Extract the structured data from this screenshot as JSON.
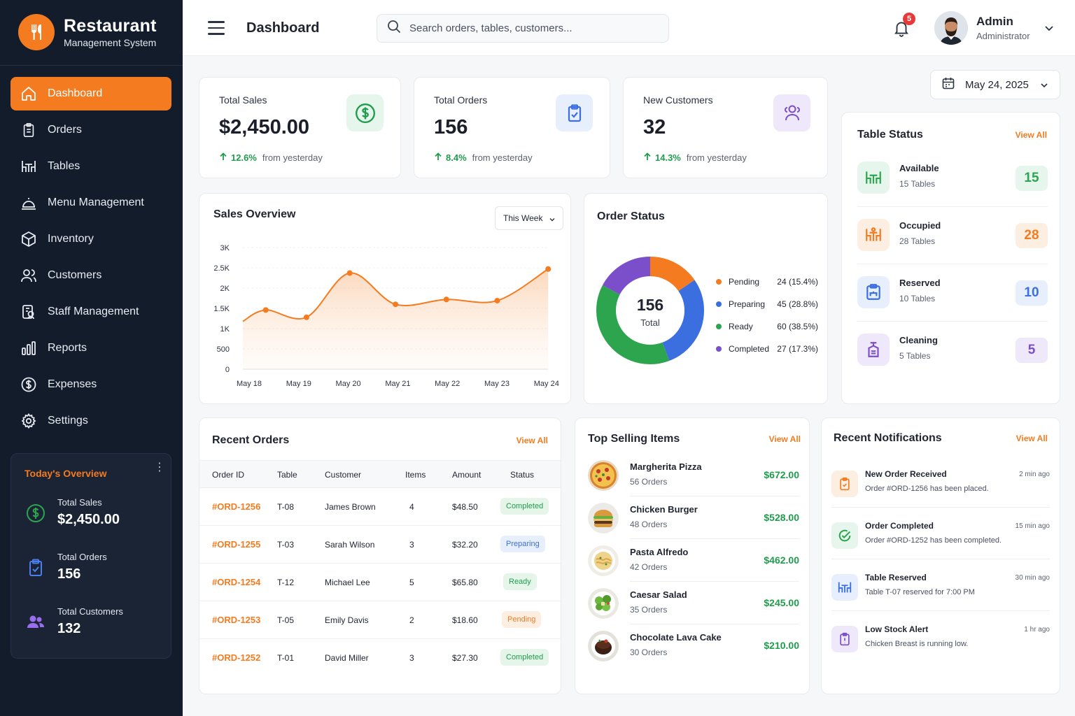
{
  "brand": {
    "title": "Restaurant",
    "subtitle": "Management System"
  },
  "header": {
    "page_title": "Dashboard",
    "search_placeholder": "Search orders, tables, customers...",
    "notification_count": "5",
    "user_name": "Admin",
    "user_role": "Administrator"
  },
  "sidebar": {
    "items": [
      {
        "label": "Dashboard",
        "icon": "home-icon",
        "active": true
      },
      {
        "label": "Orders",
        "icon": "clipboard-icon"
      },
      {
        "label": "Tables",
        "icon": "table-icon"
      },
      {
        "label": "Menu Management",
        "icon": "cloche-icon"
      },
      {
        "label": "Inventory",
        "icon": "box-icon"
      },
      {
        "label": "Customers",
        "icon": "users-icon"
      },
      {
        "label": "Staff Management",
        "icon": "staff-icon"
      },
      {
        "label": "Reports",
        "icon": "bar-chart-icon"
      },
      {
        "label": "Expenses",
        "icon": "dollar-icon"
      },
      {
        "label": "Settings",
        "icon": "gear-icon"
      }
    ],
    "overview": {
      "title": "Today's Overview",
      "items": [
        {
          "label": "Total Sales",
          "value": "$2,450.00"
        },
        {
          "label": "Total Orders",
          "value": "156"
        },
        {
          "label": "Total Customers",
          "value": "132"
        }
      ]
    }
  },
  "stats": [
    {
      "label": "Total Sales",
      "value": "$2,450.00",
      "change": "12.6%",
      "change_text": "from yesterday"
    },
    {
      "label": "Total Orders",
      "value": "156",
      "change": "8.4%",
      "change_text": "from yesterday"
    },
    {
      "label": "New Customers",
      "value": "32",
      "change": "14.3%",
      "change_text": "from yesterday"
    }
  ],
  "date_picker": {
    "value": "May 24, 2025"
  },
  "sales_overview": {
    "title": "Sales Overview",
    "range": "This Week"
  },
  "chart_data": {
    "type": "area",
    "x": [
      "May 18",
      "May 19",
      "May 20",
      "May 21",
      "May 22",
      "May 23",
      "May 24"
    ],
    "yticks": [
      "3K",
      "2.5K",
      "2K",
      "1.5K",
      "1K",
      "500",
      "0"
    ],
    "ylim": [
      0,
      3000
    ],
    "points": [
      {
        "x": 0.0,
        "y": 1180
      },
      {
        "x": 0.45,
        "y": 1460
      },
      {
        "x": 1.25,
        "y": 1280
      },
      {
        "x": 2.1,
        "y": 2370
      },
      {
        "x": 3.0,
        "y": 1600
      },
      {
        "x": 4.0,
        "y": 1720
      },
      {
        "x": 5.0,
        "y": 1690
      },
      {
        "x": 6.0,
        "y": 2470
      }
    ],
    "color": "#f47b20",
    "grid": true
  },
  "order_status": {
    "title": "Order Status",
    "total": "156",
    "total_label": "Total",
    "segments": [
      {
        "label": "Pending",
        "value": "24 (15.4%)",
        "pct": 15.4,
        "color": "#f47b20"
      },
      {
        "label": "Preparing",
        "value": "45 (28.8%)",
        "pct": 28.8,
        "color": "#3b6fe0"
      },
      {
        "label": "Ready",
        "value": "60 (38.5%)",
        "pct": 38.5,
        "color": "#2da44e"
      },
      {
        "label": "Completed",
        "value": "27 (17.3%)",
        "pct": 17.3,
        "color": "#7b4fc9"
      }
    ]
  },
  "table_status": {
    "title": "Table Status",
    "view_all": "View All",
    "items": [
      {
        "name": "Available",
        "sub": "15 Tables",
        "count": "15",
        "color": "#2da44e",
        "bg": "#e7f6ec"
      },
      {
        "name": "Occupied",
        "sub": "28 Tables",
        "count": "28",
        "color": "#f47b20",
        "bg": "#fdeee2"
      },
      {
        "name": "Reserved",
        "sub": "10 Tables",
        "count": "10",
        "color": "#3b6fe0",
        "bg": "#e8effc"
      },
      {
        "name": "Cleaning",
        "sub": "5 Tables",
        "count": "5",
        "color": "#7b4fc9",
        "bg": "#efe8fa"
      }
    ]
  },
  "recent_orders": {
    "title": "Recent Orders",
    "view_all": "View All",
    "columns": [
      "Order ID",
      "Table",
      "Customer",
      "Items",
      "Amount",
      "Status"
    ],
    "rows": [
      {
        "id": "#ORD-1256",
        "table": "T-08",
        "customer": "James Brown",
        "items": "4",
        "amount": "$48.50",
        "status": "Completed",
        "color": "#1f9d4c",
        "bg": "#e5f5ea"
      },
      {
        "id": "#ORD-1255",
        "table": "T-03",
        "customer": "Sarah Wilson",
        "items": "3",
        "amount": "$32.20",
        "status": "Preparing",
        "color": "#3b6fe0",
        "bg": "#e8effc"
      },
      {
        "id": "#ORD-1254",
        "table": "T-12",
        "customer": "Michael Lee",
        "items": "5",
        "amount": "$65.80",
        "status": "Ready",
        "color": "#1f9d4c",
        "bg": "#e5f5ea"
      },
      {
        "id": "#ORD-1253",
        "table": "T-05",
        "customer": "Emily Davis",
        "items": "2",
        "amount": "$18.60",
        "status": "Pending",
        "color": "#f47b20",
        "bg": "#fdeee2"
      },
      {
        "id": "#ORD-1252",
        "table": "T-01",
        "customer": "David Miller",
        "items": "3",
        "amount": "$27.30",
        "status": "Completed",
        "color": "#1f9d4c",
        "bg": "#e5f5ea"
      }
    ]
  },
  "top_selling": {
    "title": "Top Selling Items",
    "view_all": "View All",
    "items": [
      {
        "name": "Margherita Pizza",
        "orders": "56 Orders",
        "price": "$672.00",
        "icon": "pizza-icon"
      },
      {
        "name": "Chicken Burger",
        "orders": "48 Orders",
        "price": "$528.00",
        "icon": "burger-icon"
      },
      {
        "name": "Pasta Alfredo",
        "orders": "42 Orders",
        "price": "$462.00",
        "icon": "pasta-icon"
      },
      {
        "name": "Caesar Salad",
        "orders": "35 Orders",
        "price": "$245.00",
        "icon": "salad-icon"
      },
      {
        "name": "Chocolate Lava Cake",
        "orders": "30 Orders",
        "price": "$210.00",
        "icon": "cake-icon"
      }
    ]
  },
  "notifications": {
    "title": "Recent Notifications",
    "view_all": "View All",
    "items": [
      {
        "title": "New Order Received",
        "desc": "Order #ORD-1256 has been placed.",
        "time": "2 min ago",
        "color": "#f47b20",
        "bg": "#fdeee2"
      },
      {
        "title": "Order Completed",
        "desc": "Order #ORD-1252 has been completed.",
        "time": "15 min ago",
        "color": "#2da44e",
        "bg": "#e7f6ec"
      },
      {
        "title": "Table Reserved",
        "desc": "Table T-07 reserved for 7:00 PM",
        "time": "30 min ago",
        "color": "#3b6fe0",
        "bg": "#e8effc"
      },
      {
        "title": "Low Stock Alert",
        "desc": "Chicken Breast is running low.",
        "time": "1 hr ago",
        "color": "#7b4fc9",
        "bg": "#efe8fa"
      }
    ]
  }
}
